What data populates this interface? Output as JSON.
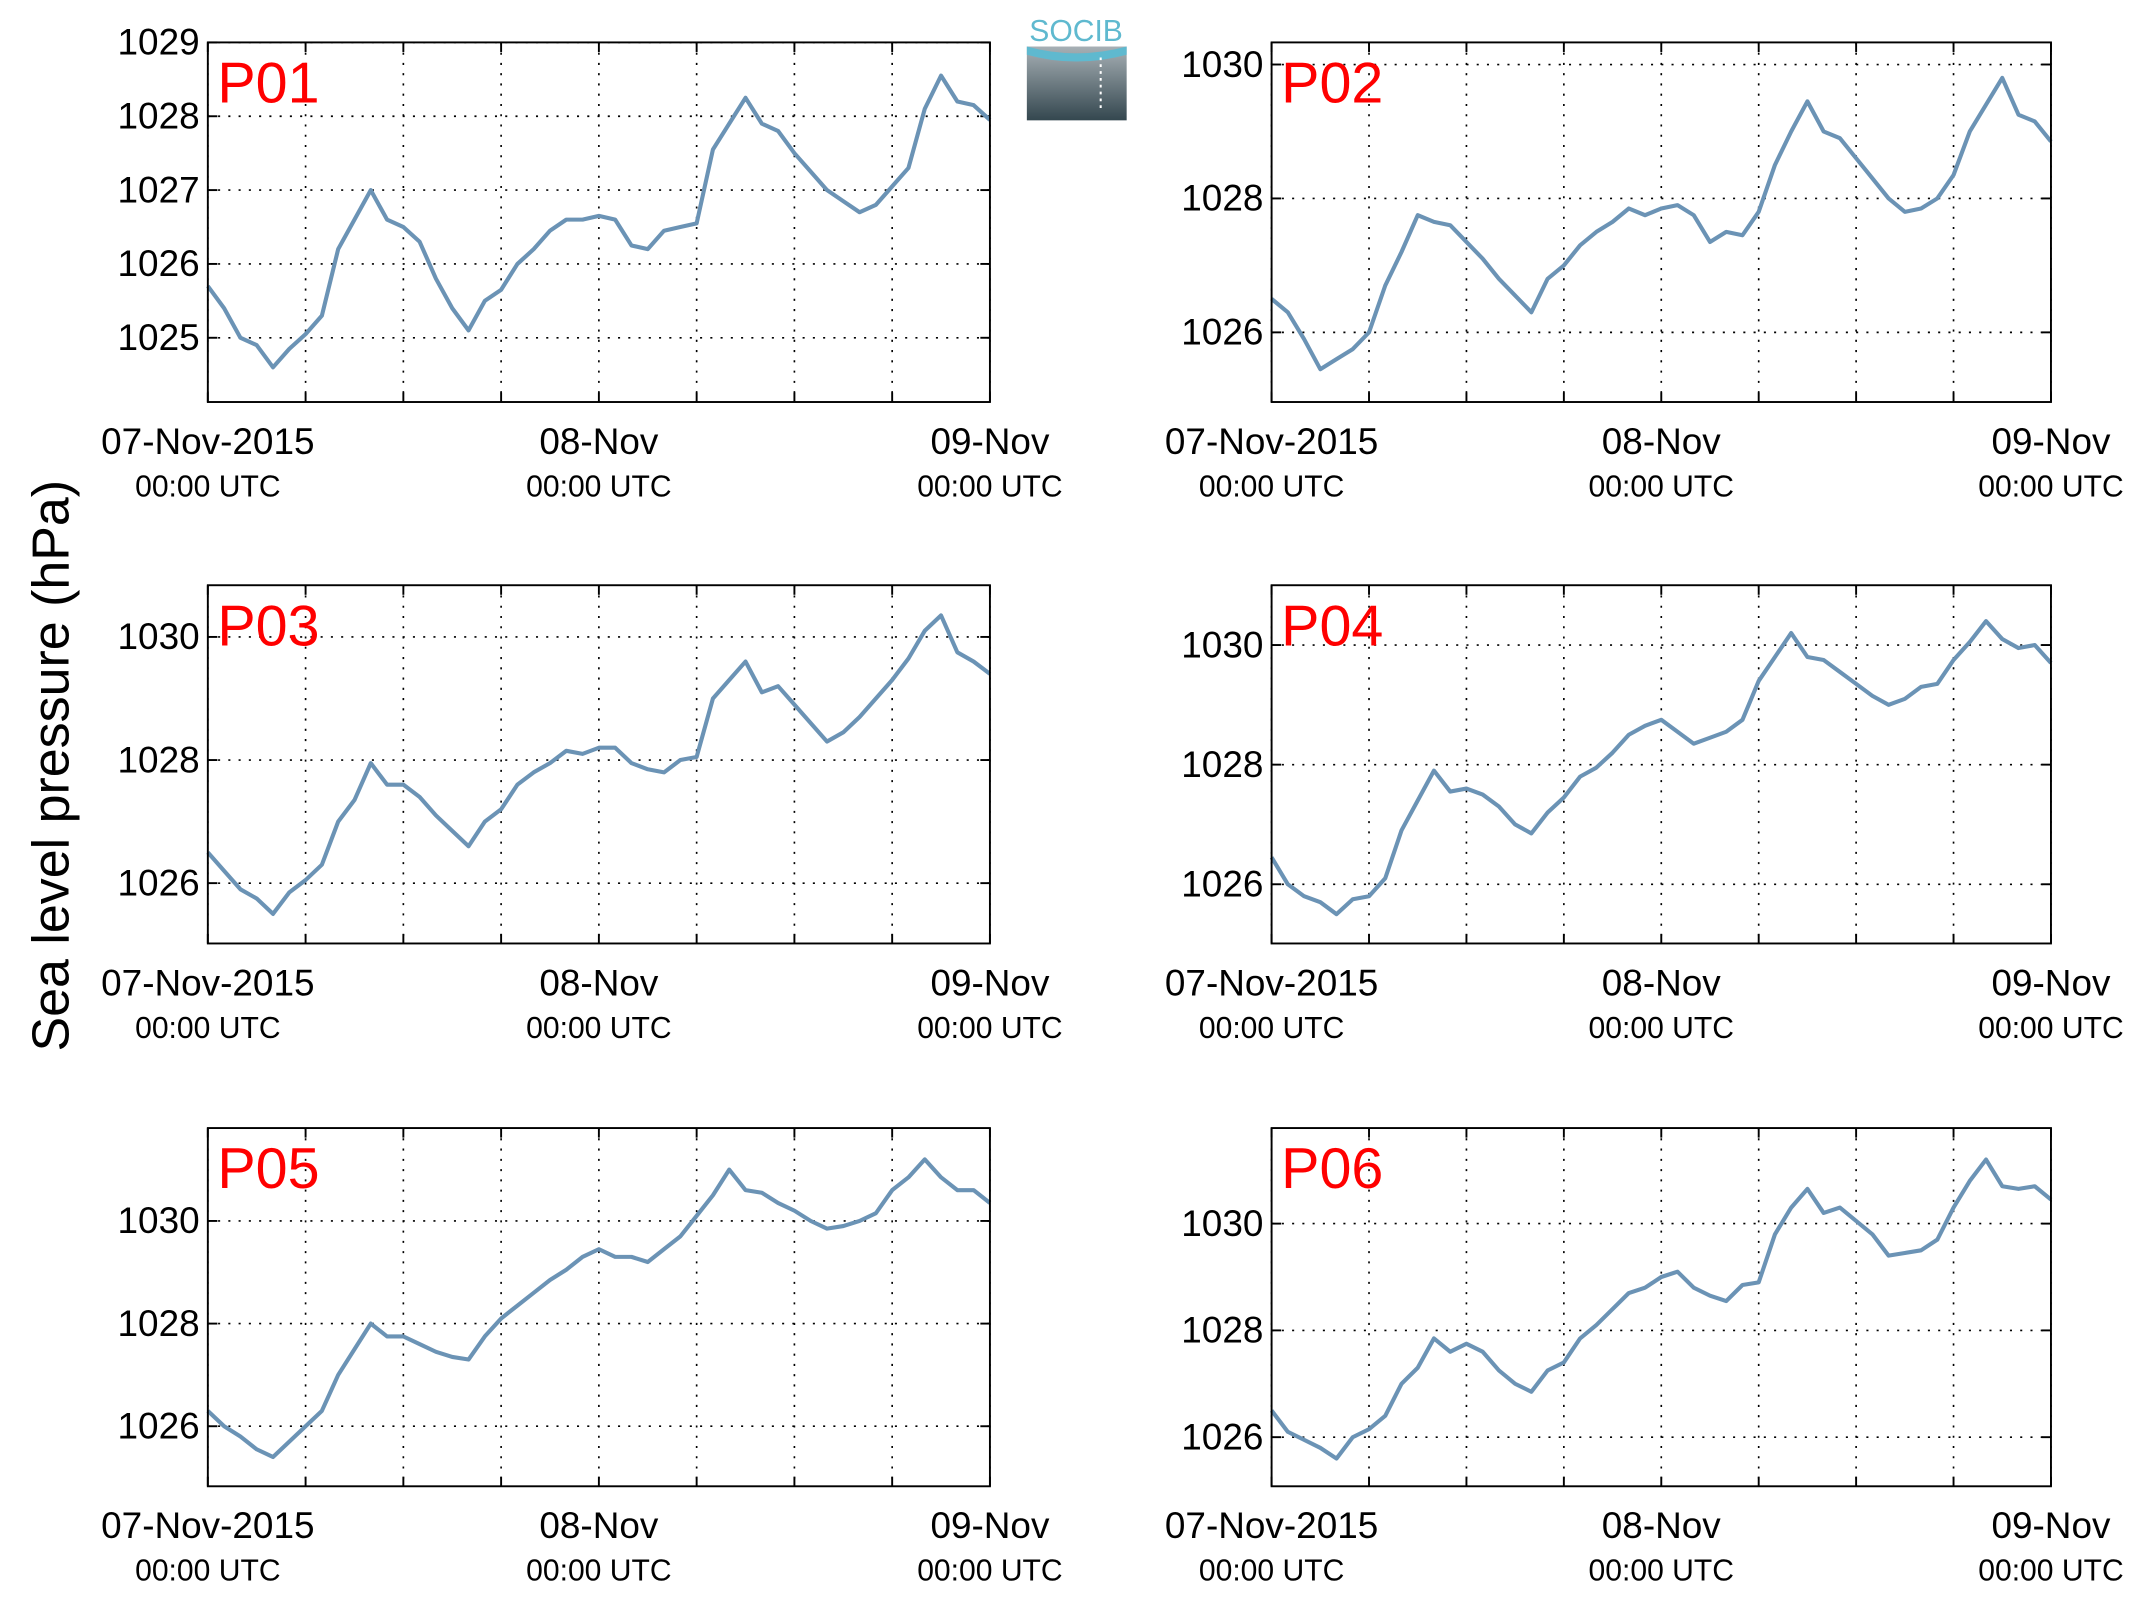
{
  "ylabel": "Sea level pressure (hPa)",
  "logo": "SOCIB",
  "chart_data": [
    {
      "type": "line",
      "title": "P01",
      "color": "#6b93b5",
      "grid": true,
      "x": [
        0,
        1,
        2,
        3,
        4,
        5,
        6,
        7,
        8,
        9,
        10,
        11,
        12,
        13,
        14,
        15,
        16,
        17,
        18,
        19,
        20,
        21,
        22,
        23,
        24,
        25,
        26,
        27,
        28,
        29,
        30,
        31,
        32,
        33,
        34,
        35,
        36,
        37,
        38,
        39,
        40,
        41,
        42,
        43,
        44,
        45,
        46,
        47,
        48
      ],
      "values": [
        1025.7,
        1025.4,
        1025.0,
        1024.9,
        1024.6,
        1024.85,
        1025.05,
        1025.3,
        1026.2,
        1026.6,
        1027.0,
        1026.6,
        1026.5,
        1026.3,
        1025.8,
        1025.4,
        1025.1,
        1025.5,
        1025.65,
        1026.0,
        1026.2,
        1026.45,
        1026.6,
        1026.6,
        1026.65,
        1026.6,
        1026.25,
        1026.2,
        1026.45,
        1026.5,
        1026.55,
        1027.55,
        1027.9,
        1028.25,
        1027.9,
        1027.8,
        1027.5,
        1027.25,
        1027.0,
        1026.85,
        1026.7,
        1026.8,
        1027.05,
        1027.3,
        1028.1,
        1028.55,
        1028.2,
        1028.15,
        1027.95
      ],
      "xlim": [
        0,
        48
      ],
      "xticks": [
        {
          "value": 0,
          "label": "07-Nov-2015",
          "sublabel": "00:00 UTC"
        },
        {
          "value": 24,
          "label": "08-Nov",
          "sublabel": "00:00 UTC"
        },
        {
          "value": 48,
          "label": "09-Nov",
          "sublabel": "00:00 UTC"
        }
      ],
      "xminorticks": [
        6,
        12,
        18,
        30,
        36,
        42
      ],
      "ylim": [
        1024.13,
        1029
      ],
      "yticks": [
        1025,
        1026,
        1027,
        1028,
        1029
      ]
    },
    {
      "type": "line",
      "title": "P02",
      "color": "#6b93b5",
      "grid": true,
      "x": [
        0,
        1,
        2,
        3,
        4,
        5,
        6,
        7,
        8,
        9,
        10,
        11,
        12,
        13,
        14,
        15,
        16,
        17,
        18,
        19,
        20,
        21,
        22,
        23,
        24,
        25,
        26,
        27,
        28,
        29,
        30,
        31,
        32,
        33,
        34,
        35,
        36,
        37,
        38,
        39,
        40,
        41,
        42,
        43,
        44,
        45,
        46,
        47,
        48
      ],
      "values": [
        1026.5,
        1026.3,
        1025.9,
        1025.45,
        1025.6,
        1025.75,
        1026.0,
        1026.7,
        1027.2,
        1027.75,
        1027.65,
        1027.6,
        1027.35,
        1027.1,
        1026.8,
        1026.55,
        1026.3,
        1026.8,
        1027.0,
        1027.3,
        1027.5,
        1027.65,
        1027.85,
        1027.75,
        1027.85,
        1027.9,
        1027.75,
        1027.35,
        1027.5,
        1027.45,
        1027.8,
        1028.5,
        1029.0,
        1029.45,
        1029.0,
        1028.9,
        1028.6,
        1028.3,
        1028.0,
        1027.8,
        1027.85,
        1028.0,
        1028.35,
        1029.0,
        1029.4,
        1029.8,
        1029.25,
        1029.15,
        1028.85
      ],
      "xlim": [
        0,
        48
      ],
      "xticks": [
        {
          "value": 0,
          "label": "07-Nov-2015",
          "sublabel": "00:00 UTC"
        },
        {
          "value": 24,
          "label": "08-Nov",
          "sublabel": "00:00 UTC"
        },
        {
          "value": 48,
          "label": "09-Nov",
          "sublabel": "00:00 UTC"
        }
      ],
      "xminorticks": [
        6,
        12,
        18,
        30,
        36,
        42
      ],
      "ylim": [
        1024.96,
        1030.33
      ],
      "yticks": [
        1026,
        1028,
        1030
      ]
    },
    {
      "type": "line",
      "title": "P03",
      "color": "#6b93b5",
      "grid": true,
      "x": [
        0,
        1,
        2,
        3,
        4,
        5,
        6,
        7,
        8,
        9,
        10,
        11,
        12,
        13,
        14,
        15,
        16,
        17,
        18,
        19,
        20,
        21,
        22,
        23,
        24,
        25,
        26,
        27,
        28,
        29,
        30,
        31,
        32,
        33,
        34,
        35,
        36,
        37,
        38,
        39,
        40,
        41,
        42,
        43,
        44,
        45,
        46,
        47,
        48
      ],
      "values": [
        1026.5,
        1026.2,
        1025.9,
        1025.75,
        1025.5,
        1025.85,
        1026.05,
        1026.3,
        1027.0,
        1027.35,
        1027.95,
        1027.6,
        1027.6,
        1027.4,
        1027.1,
        1026.85,
        1026.6,
        1027.0,
        1027.2,
        1027.6,
        1027.8,
        1027.95,
        1028.15,
        1028.1,
        1028.2,
        1028.2,
        1027.95,
        1027.85,
        1027.8,
        1028.0,
        1028.05,
        1029.0,
        1029.3,
        1029.6,
        1029.1,
        1029.2,
        1028.9,
        1028.6,
        1028.3,
        1028.45,
        1028.7,
        1029.0,
        1029.3,
        1029.65,
        1030.1,
        1030.35,
        1029.75,
        1029.6,
        1029.4
      ],
      "xlim": [
        0,
        48
      ],
      "xticks": [
        {
          "value": 0,
          "label": "07-Nov-2015",
          "sublabel": "00:00 UTC"
        },
        {
          "value": 24,
          "label": "08-Nov",
          "sublabel": "00:00 UTC"
        },
        {
          "value": 48,
          "label": "09-Nov",
          "sublabel": "00:00 UTC"
        }
      ],
      "xminorticks": [
        6,
        12,
        18,
        30,
        36,
        42
      ],
      "ylim": [
        1025.02,
        1030.84
      ],
      "yticks": [
        1026,
        1028,
        1030
      ]
    },
    {
      "type": "line",
      "title": "P04",
      "color": "#6b93b5",
      "grid": true,
      "x": [
        0,
        1,
        2,
        3,
        4,
        5,
        6,
        7,
        8,
        9,
        10,
        11,
        12,
        13,
        14,
        15,
        16,
        17,
        18,
        19,
        20,
        21,
        22,
        23,
        24,
        25,
        26,
        27,
        28,
        29,
        30,
        31,
        32,
        33,
        34,
        35,
        36,
        37,
        38,
        39,
        40,
        41,
        42,
        43,
        44,
        45,
        46,
        47,
        48
      ],
      "values": [
        1026.45,
        1026.0,
        1025.8,
        1025.7,
        1025.5,
        1025.75,
        1025.8,
        1026.1,
        1026.9,
        1027.4,
        1027.9,
        1027.55,
        1027.6,
        1027.5,
        1027.3,
        1027.0,
        1026.85,
        1027.2,
        1027.45,
        1027.8,
        1027.95,
        1028.2,
        1028.5,
        1028.65,
        1028.75,
        1028.55,
        1028.35,
        1028.45,
        1028.55,
        1028.75,
        1029.4,
        1029.8,
        1030.2,
        1029.8,
        1029.75,
        1029.55,
        1029.35,
        1029.15,
        1029.0,
        1029.1,
        1029.3,
        1029.35,
        1029.75,
        1030.05,
        1030.4,
        1030.1,
        1029.95,
        1030.0,
        1029.7
      ],
      "xlim": [
        0,
        48
      ],
      "xticks": [
        {
          "value": 0,
          "label": "07-Nov-2015",
          "sublabel": "00:00 UTC"
        },
        {
          "value": 24,
          "label": "08-Nov",
          "sublabel": "00:00 UTC"
        },
        {
          "value": 48,
          "label": "09-Nov",
          "sublabel": "00:00 UTC"
        }
      ],
      "xminorticks": [
        6,
        12,
        18,
        30,
        36,
        42
      ],
      "ylim": [
        1025.01,
        1031.0
      ],
      "yticks": [
        1026,
        1028,
        1030
      ]
    },
    {
      "type": "line",
      "title": "P05",
      "color": "#6b93b5",
      "grid": true,
      "x": [
        0,
        1,
        2,
        3,
        4,
        5,
        6,
        7,
        8,
        9,
        10,
        11,
        12,
        13,
        14,
        15,
        16,
        17,
        18,
        19,
        20,
        21,
        22,
        23,
        24,
        25,
        26,
        27,
        28,
        29,
        30,
        31,
        32,
        33,
        34,
        35,
        36,
        37,
        38,
        39,
        40,
        41,
        42,
        43,
        44,
        45,
        46,
        47,
        48
      ],
      "values": [
        1026.3,
        1026.0,
        1025.8,
        1025.55,
        1025.4,
        1025.7,
        1026.0,
        1026.3,
        1027.0,
        1027.5,
        1028.0,
        1027.75,
        1027.75,
        1027.6,
        1027.45,
        1027.35,
        1027.3,
        1027.75,
        1028.1,
        1028.35,
        1028.6,
        1028.85,
        1029.05,
        1029.3,
        1029.45,
        1029.3,
        1029.3,
        1029.2,
        1029.45,
        1029.7,
        1030.1,
        1030.5,
        1031.0,
        1030.6,
        1030.55,
        1030.35,
        1030.2,
        1030.0,
        1029.85,
        1029.9,
        1030.0,
        1030.15,
        1030.6,
        1030.85,
        1031.2,
        1030.85,
        1030.6,
        1030.6,
        1030.35
      ],
      "xlim": [
        0,
        48
      ],
      "xticks": [
        {
          "value": 0,
          "label": "07-Nov-2015",
          "sublabel": "00:00 UTC"
        },
        {
          "value": 24,
          "label": "08-Nov",
          "sublabel": "00:00 UTC"
        },
        {
          "value": 48,
          "label": "09-Nov",
          "sublabel": "00:00 UTC"
        }
      ],
      "xminorticks": [
        6,
        12,
        18,
        30,
        36,
        42
      ],
      "ylim": [
        1024.83,
        1031.81
      ],
      "yticks": [
        1026,
        1028,
        1030
      ]
    },
    {
      "type": "line",
      "title": "P06",
      "color": "#6b93b5",
      "grid": true,
      "x": [
        0,
        1,
        2,
        3,
        4,
        5,
        6,
        7,
        8,
        9,
        10,
        11,
        12,
        13,
        14,
        15,
        16,
        17,
        18,
        19,
        20,
        21,
        22,
        23,
        24,
        25,
        26,
        27,
        28,
        29,
        30,
        31,
        32,
        33,
        34,
        35,
        36,
        37,
        38,
        39,
        40,
        41,
        42,
        43,
        44,
        45,
        46,
        47,
        48
      ],
      "values": [
        1026.5,
        1026.1,
        1025.95,
        1025.8,
        1025.6,
        1026.0,
        1026.15,
        1026.4,
        1027.0,
        1027.3,
        1027.85,
        1027.6,
        1027.75,
        1027.6,
        1027.25,
        1027.0,
        1026.85,
        1027.25,
        1027.4,
        1027.85,
        1028.1,
        1028.4,
        1028.7,
        1028.8,
        1029.0,
        1029.1,
        1028.8,
        1028.65,
        1028.55,
        1028.85,
        1028.9,
        1029.8,
        1030.3,
        1030.65,
        1030.2,
        1030.3,
        1030.05,
        1029.8,
        1029.4,
        1029.45,
        1029.5,
        1029.7,
        1030.3,
        1030.8,
        1031.2,
        1030.7,
        1030.65,
        1030.7,
        1030.45
      ],
      "xlim": [
        0,
        48
      ],
      "xticks": [
        {
          "value": 0,
          "label": "07-Nov-2015",
          "sublabel": "00:00 UTC"
        },
        {
          "value": 24,
          "label": "08-Nov",
          "sublabel": "00:00 UTC"
        },
        {
          "value": 48,
          "label": "09-Nov",
          "sublabel": "00:00 UTC"
        }
      ],
      "xminorticks": [
        6,
        12,
        18,
        30,
        36,
        42
      ],
      "ylim": [
        1025.08,
        1031.79
      ],
      "yticks": [
        1026,
        1028,
        1030
      ]
    }
  ]
}
